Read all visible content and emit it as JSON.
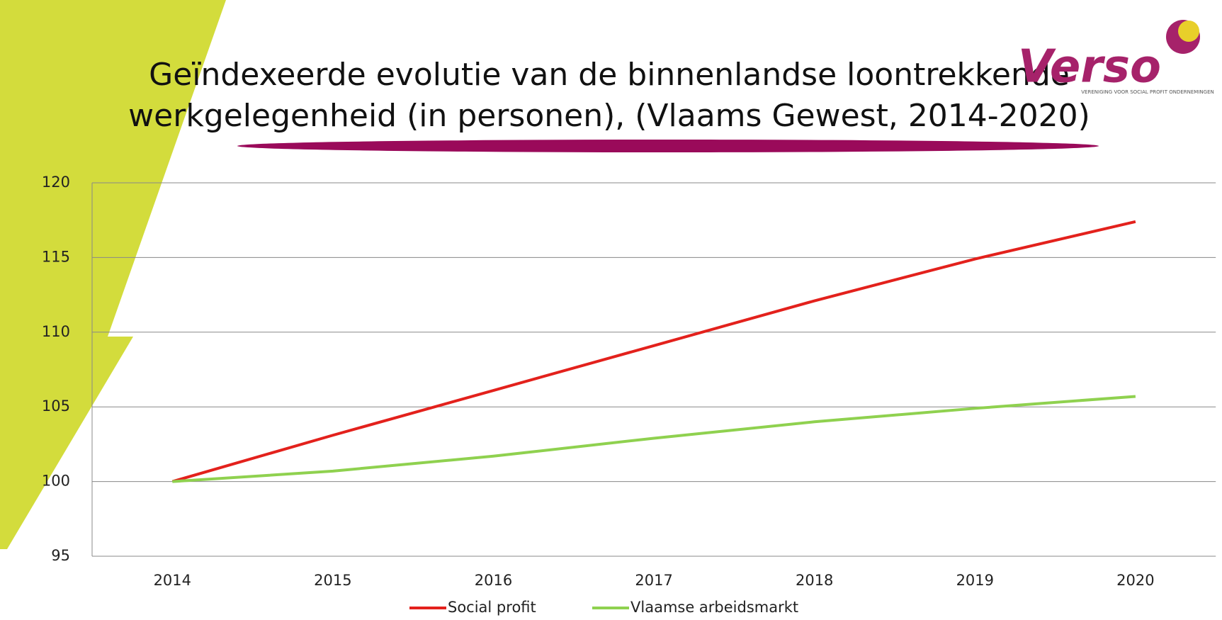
{
  "chart_data": {
    "type": "line",
    "title": [
      "Geïndexeerde evolutie van de binnenlandse loontrekkende",
      "werkgelegenheid (in personen), (Vlaams Gewest, 2014-2020)"
    ],
    "logo": {
      "name": "Verso",
      "tagline": "VERENIGING VOOR SOCIAL PROFIT ONDERNEMINGEN"
    },
    "categories": [
      "2014",
      "2015",
      "2016",
      "2017",
      "2018",
      "2019",
      "2020"
    ],
    "series": [
      {
        "name": "Social profit",
        "color": "#e3211c",
        "values": [
          100,
          103.1,
          106.1,
          109.1,
          112.1,
          114.9,
          117.4
        ]
      },
      {
        "name": "Vlaamse arbeidsmarkt",
        "color": "#8fd14f",
        "values": [
          100,
          100.7,
          101.7,
          102.9,
          104,
          104.9,
          105.7
        ]
      }
    ],
    "ylim": [
      95,
      120
    ],
    "yticks": [
      95,
      100,
      105,
      110,
      115,
      120
    ],
    "grid": true,
    "legend": "bottom"
  }
}
